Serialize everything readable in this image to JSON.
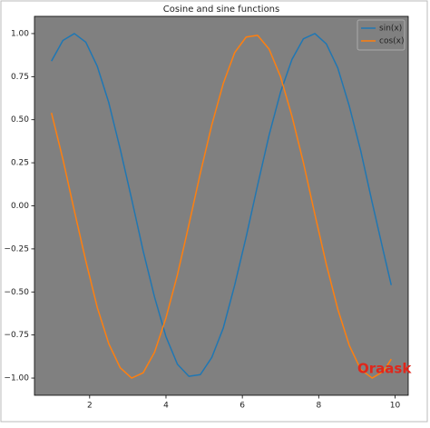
{
  "chart_data": {
    "type": "line",
    "title": "Cosine and sine functions",
    "x": [
      1,
      1.3,
      1.6,
      1.9,
      2.2,
      2.5,
      2.8,
      3.1,
      3.4,
      3.7,
      4.0,
      4.3,
      4.6,
      4.9,
      5.2,
      5.5,
      5.8,
      6.1,
      6.4,
      6.7,
      7.0,
      7.3,
      7.6,
      7.9,
      8.2,
      8.5,
      8.8,
      9.1,
      9.4,
      9.7,
      9.9
    ],
    "series": [
      {
        "name": "sin(x)",
        "color": "#1f77b4",
        "values": [
          0.84,
          0.96,
          1.0,
          0.95,
          0.81,
          0.6,
          0.33,
          0.04,
          -0.26,
          -0.53,
          -0.76,
          -0.92,
          -0.99,
          -0.98,
          -0.88,
          -0.71,
          -0.46,
          -0.18,
          0.12,
          0.41,
          0.66,
          0.85,
          0.97,
          1.0,
          0.94,
          0.8,
          0.58,
          0.32,
          0.02,
          -0.27,
          -0.46
        ]
      },
      {
        "name": "cos(x)",
        "color": "#ff7f0e",
        "values": [
          0.54,
          0.27,
          -0.03,
          -0.32,
          -0.59,
          -0.8,
          -0.94,
          -1.0,
          -0.97,
          -0.85,
          -0.65,
          -0.4,
          -0.11,
          0.19,
          0.47,
          0.71,
          0.89,
          0.98,
          0.99,
          0.91,
          0.75,
          0.52,
          0.25,
          -0.05,
          -0.34,
          -0.6,
          -0.81,
          -0.95,
          -1.0,
          -0.96,
          -0.89
        ]
      }
    ],
    "xlim": [
      0.555,
      10.345
    ],
    "xticks": [
      2,
      4,
      6,
      8,
      10
    ],
    "ylim": [
      -1.1,
      1.1
    ],
    "yticks": [
      {
        "value": -1,
        "label": "−1.00"
      },
      {
        "value": -0.75,
        "label": "−0.75"
      },
      {
        "value": -0.5,
        "label": "−0.50"
      },
      {
        "value": -0.25,
        "label": "−0.25"
      },
      {
        "value": 0,
        "label": "0.00"
      },
      {
        "value": 0.25,
        "label": "0.25"
      },
      {
        "value": 0.5,
        "label": "0.50"
      },
      {
        "value": 0.75,
        "label": "0.75"
      },
      {
        "value": 1,
        "label": "1.00"
      }
    ],
    "background": "#808080",
    "legend": "upper-right",
    "watermark": "Oraask"
  }
}
